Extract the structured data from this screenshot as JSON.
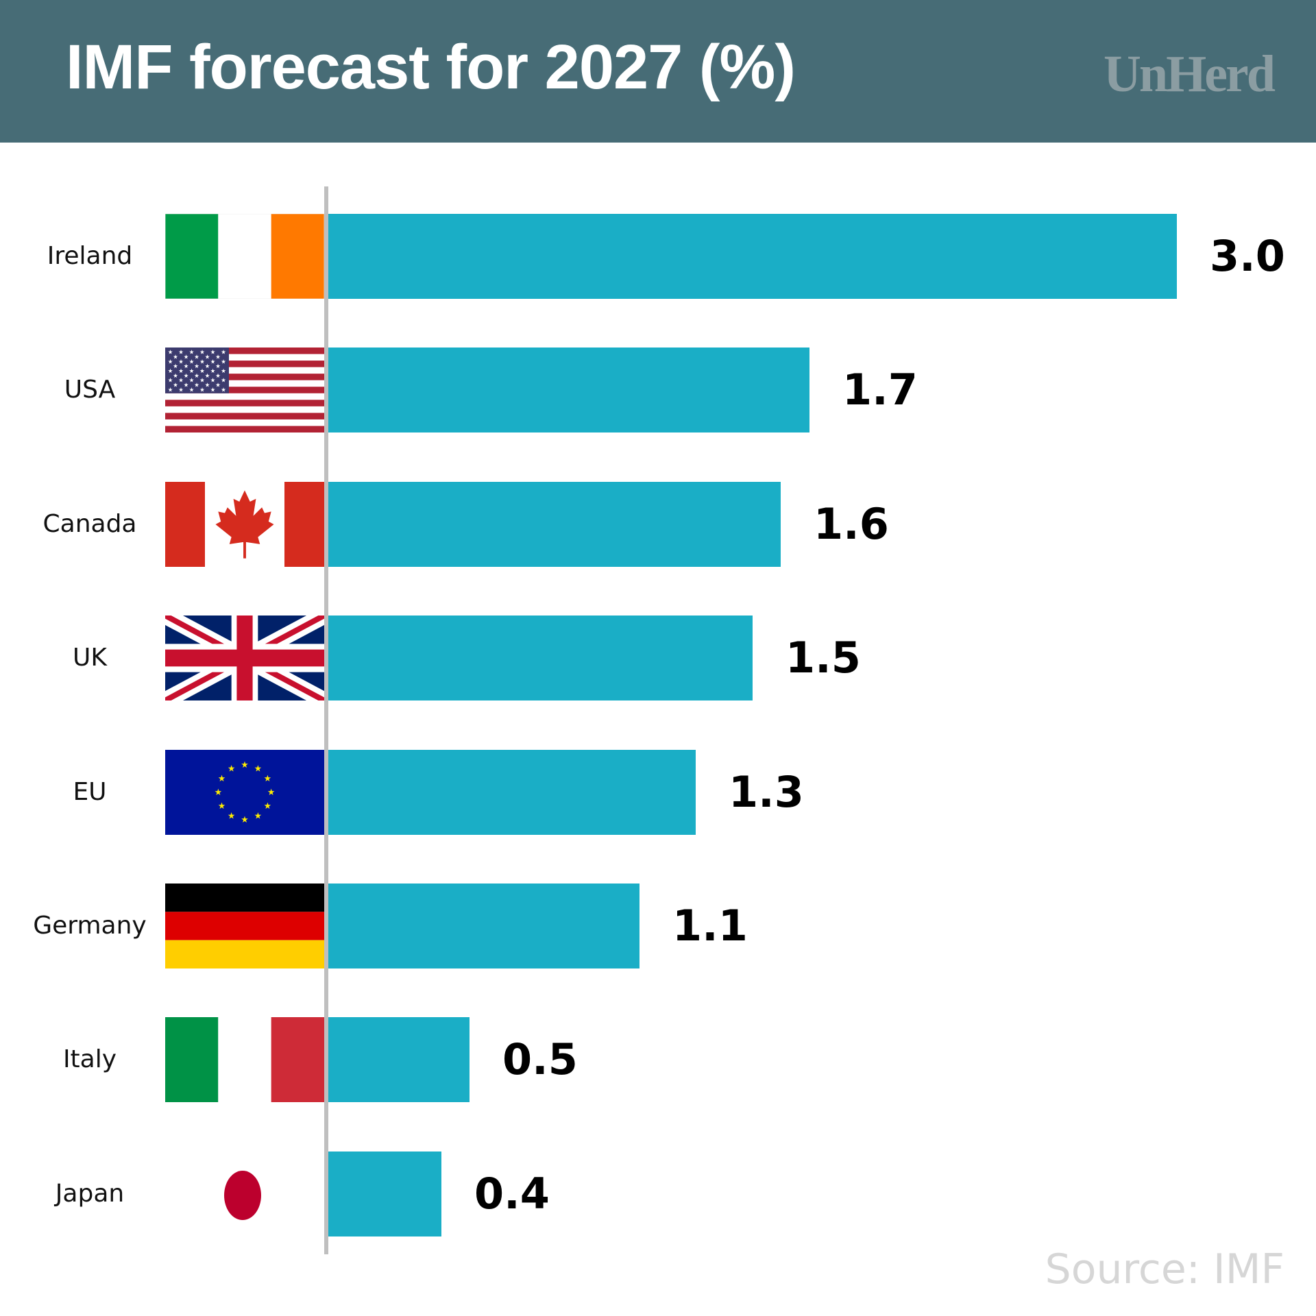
{
  "header": {
    "title": "IMF forecast for 2027 (%)",
    "brand": "UnHerd"
  },
  "source": "Source: IMF",
  "colors": {
    "header_bg": "#476c76",
    "bar": "#1aaec6",
    "axis": "#bfbfbf",
    "brand": "#8b9da2",
    "source": "#d6d6d6"
  },
  "chart_data": {
    "type": "bar",
    "orientation": "horizontal",
    "title": "IMF forecast for 2027 (%)",
    "xlabel": "",
    "ylabel": "",
    "categories": [
      "Ireland",
      "USA",
      "Canada",
      "UK",
      "EU",
      "Germany",
      "Italy",
      "Japan"
    ],
    "values": [
      3.0,
      1.7,
      1.6,
      1.5,
      1.3,
      1.1,
      0.5,
      0.4
    ],
    "value_labels": [
      "3.0",
      "1.7",
      "1.6",
      "1.5",
      "1.3",
      "1.1",
      "0.5",
      "0.4"
    ],
    "flags": [
      "ireland-flag-icon",
      "usa-flag-icon",
      "canada-flag-icon",
      "uk-flag-icon",
      "eu-flag-icon",
      "germany-flag-icon",
      "italy-flag-icon",
      "japan-flag-icon"
    ],
    "xlim": [
      0,
      3.0
    ],
    "grid": false,
    "legend": "none",
    "source": "Source: IMF"
  }
}
